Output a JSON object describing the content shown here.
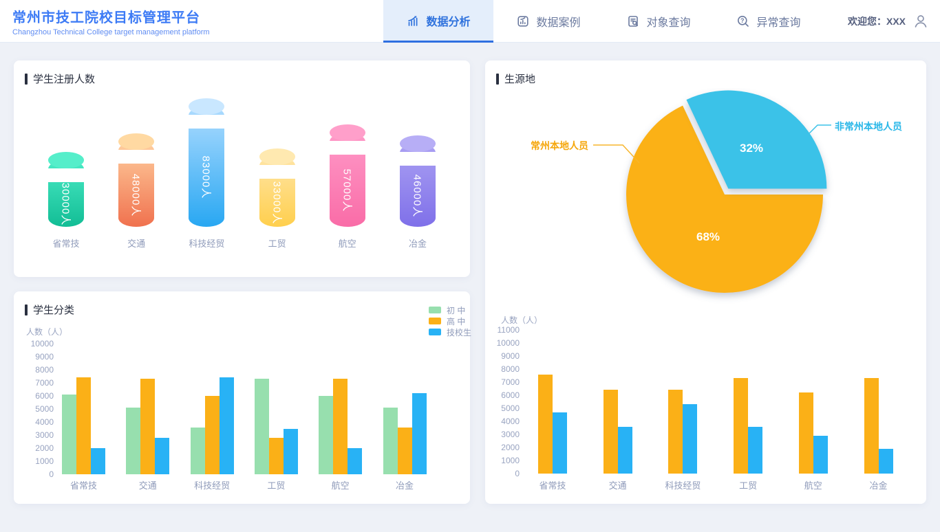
{
  "header": {
    "title": "常州市技工院校目标管理平台",
    "subtitle": "Changzhou Technical College target management platform",
    "welcome_label": "欢迎您：XXX",
    "tabs": [
      {
        "label": "数据分析",
        "active": true
      },
      {
        "label": "数据案例",
        "active": false
      },
      {
        "label": "对象查询",
        "active": false
      },
      {
        "label": "异常查询",
        "active": false
      }
    ]
  },
  "colors": {
    "brand_blue": "#3D7BF5",
    "tab_active_bg": "#E4EEFB",
    "tab_active_text": "#2F72DD",
    "page_bg": "#EEF1F7",
    "axis_text": "#98A3C0",
    "pie_orange": "#FBB118",
    "pie_blue": "#3BC2E8",
    "bar_green": "#97DFAE",
    "bar_orange": "#FBB017",
    "bar_blue": "#28B2F5"
  },
  "cards": {
    "registration": {
      "title": "学生注册人数"
    },
    "origin": {
      "title": "生源地"
    },
    "classification": {
      "title": "学生分类"
    }
  },
  "chart_data": [
    {
      "id": "registration",
      "type": "bar",
      "variant": "cylinder",
      "title": "学生注册人数",
      "categories": [
        "省常技",
        "交通",
        "科技经贸",
        "工贸",
        "航空",
        "冶金"
      ],
      "values": [
        30000,
        48000,
        83000,
        33000,
        57000,
        46000
      ],
      "value_labels": [
        "30000人",
        "48000人",
        "83000人",
        "33000人",
        "57000人",
        "46000人"
      ],
      "cylinder_colors": [
        {
          "cap": "#55EECA",
          "top": "#4BEBC6",
          "bottom": "#12BD95"
        },
        {
          "cap": "#FFD9A2",
          "top": "#FFD0A0",
          "bottom": "#F0714E"
        },
        {
          "cap": "#C9E7FF",
          "top": "#AFDCFF",
          "bottom": "#28A7F2"
        },
        {
          "cap": "#FFE9B0",
          "top": "#FFE5A6",
          "bottom": "#FFCF4D"
        },
        {
          "cap": "#FF9FCA",
          "top": "#FF9AC8",
          "bottom": "#F96CA7"
        },
        {
          "cap": "#B7AEF6",
          "top": "#ABA1F3",
          "bottom": "#7F70E9"
        }
      ]
    },
    {
      "id": "origin-pie",
      "type": "pie",
      "title": "生源地",
      "slices": [
        {
          "label": "常州本地人员",
          "value": 68,
          "display": "68%",
          "color": "#FBB118"
        },
        {
          "label": "非常州本地人员",
          "value": 32,
          "display": "32%",
          "color": "#3BC2E8"
        }
      ]
    },
    {
      "id": "origin-bars",
      "type": "bar",
      "ylabel": "人数（人）",
      "ylim": [
        0,
        11000
      ],
      "yticks": [
        0,
        1000,
        2000,
        3000,
        4000,
        5000,
        6000,
        7000,
        8000,
        9000,
        10000,
        11000
      ],
      "categories": [
        "省常技",
        "交通",
        "科技经贸",
        "工贸",
        "航空",
        "冶金"
      ],
      "series": [
        {
          "name": "",
          "color": "#FBB017",
          "values": [
            7600,
            6400,
            6400,
            7300,
            6200,
            7300
          ]
        },
        {
          "name": "",
          "color": "#28B2F5",
          "values": [
            4700,
            3600,
            5300,
            3600,
            2900,
            1900
          ]
        }
      ],
      "legend_visible": false
    },
    {
      "id": "classification-bars",
      "type": "bar",
      "title": "学生分类",
      "ylabel": "人数（人）",
      "ylim": [
        0,
        10000
      ],
      "yticks": [
        0,
        1000,
        2000,
        3000,
        4000,
        5000,
        6000,
        7000,
        8000,
        9000,
        10000
      ],
      "categories": [
        "省常技",
        "交通",
        "科技经贸",
        "工贸",
        "航空",
        "冶金"
      ],
      "series": [
        {
          "name": "初 中",
          "color": "#97DFAE",
          "values": [
            6100,
            5100,
            3600,
            7300,
            6000,
            5100
          ]
        },
        {
          "name": "高 中",
          "color": "#FBB017",
          "values": [
            7400,
            7300,
            6000,
            2800,
            7300,
            3600
          ]
        },
        {
          "name": "技校生",
          "color": "#28B2F5",
          "values": [
            2000,
            2800,
            7400,
            3500,
            2000,
            6200
          ]
        }
      ],
      "legend": [
        "初 中",
        "高 中",
        "技校生"
      ],
      "legend_visible": true
    }
  ]
}
